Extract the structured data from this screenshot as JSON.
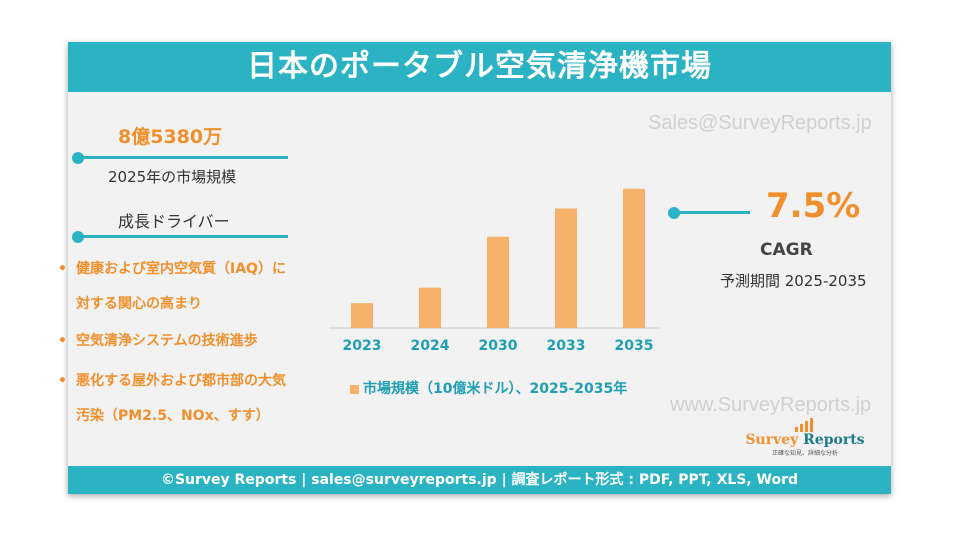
{
  "title": "日本のポータブル空気清浄機市場",
  "watermark_top": "Sales@SurveyReports.jp",
  "watermark_bottom": "www.SurveyReports.jp",
  "market_size": {
    "value": "8億5380万",
    "label": "2025年の市場規模"
  },
  "drivers": {
    "heading": "成長ドライバー",
    "items": [
      [
        "健康および室内空気質（IAQ）に",
        "対する関心の高まり"
      ],
      [
        "空気清浄システムの技術進歩"
      ],
      [
        "悪化する屋外および都市部の大気",
        "汚染（PM2.5、NOx、すす）"
      ]
    ]
  },
  "cagr": {
    "value": "7.5%",
    "label": "CAGR",
    "period": "予測期間 2025-2035"
  },
  "chart_data": {
    "type": "bar",
    "categories": [
      "2023",
      "2024",
      "2030",
      "2033",
      "2035"
    ],
    "values": [
      0.58,
      0.94,
      2.13,
      2.79,
      3.25
    ],
    "legend": "市場規模（10億米ドル）、2025-2035年",
    "legend_position": "bottom",
    "ylim": [
      0,
      3.5
    ],
    "grid": false,
    "bar_color": "#f6b26b"
  },
  "logo": {
    "name_1": "Survey",
    "name_2": "Reports",
    "tagline": "正確な知見、詳細な分析"
  },
  "footer": "©Survey Reports | sales@surveyreports.jp |  調査レポート形式 : PDF, PPT, XLS, Word",
  "colors": {
    "accent": "#2bb3c4",
    "highlight": "#f0902c",
    "bar": "#f6b26b",
    "background": "#f2f2f2"
  }
}
